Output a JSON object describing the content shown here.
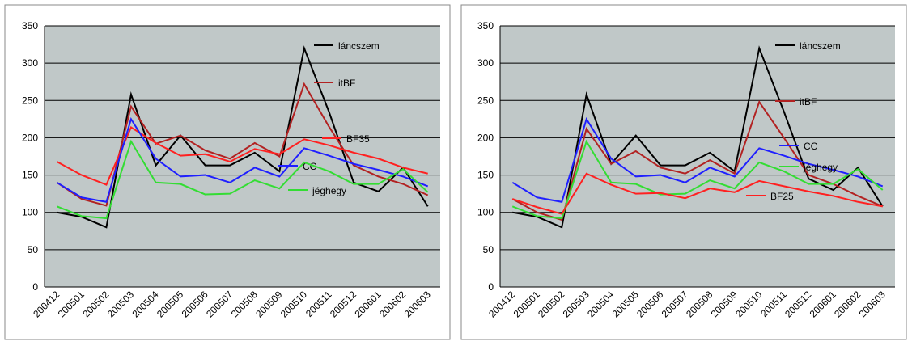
{
  "chart_data": [
    {
      "type": "line",
      "categories": [
        "200412",
        "200501",
        "200502",
        "200503",
        "200504",
        "200505",
        "200506",
        "200507",
        "200508",
        "200509",
        "200510",
        "200511",
        "200512",
        "200601",
        "200602",
        "200603"
      ],
      "ylim": [
        0,
        350
      ],
      "yticks": [
        0,
        50,
        100,
        150,
        200,
        250,
        300,
        350
      ],
      "grid": true,
      "series": [
        {
          "name": "láncszem",
          "color": "#000000",
          "values": [
            100,
            94,
            80,
            258,
            163,
            203,
            163,
            163,
            180,
            155,
            320,
            235,
            140,
            128,
            160,
            108
          ]
        },
        {
          "name": "itBF",
          "color": "#b22222",
          "values": [
            140,
            118,
            109,
            242,
            192,
            203,
            183,
            172,
            193,
            175,
            272,
            215,
            163,
            148,
            138,
            123
          ]
        },
        {
          "name": "BF35",
          "color": "#ff2020",
          "values": [
            168,
            150,
            137,
            214,
            193,
            176,
            178,
            168,
            185,
            178,
            198,
            190,
            180,
            172,
            160,
            152
          ]
        },
        {
          "name": "CC",
          "color": "#1f1fff",
          "values": [
            140,
            120,
            114,
            225,
            172,
            148,
            150,
            140,
            160,
            148,
            186,
            176,
            165,
            157,
            148,
            135
          ]
        },
        {
          "name": "jéghegy",
          "color": "#33dd33",
          "values": [
            108,
            95,
            92,
            195,
            140,
            138,
            124,
            125,
            143,
            132,
            167,
            155,
            138,
            138,
            158,
            127
          ]
        }
      ]
    },
    {
      "type": "line",
      "categories": [
        "200412",
        "200501",
        "200502",
        "200503",
        "200504",
        "200505",
        "200506",
        "200507",
        "200508",
        "200509",
        "200510",
        "200511",
        "200512",
        "200601",
        "200602",
        "200603"
      ],
      "ylim": [
        0,
        350
      ],
      "yticks": [
        0,
        50,
        100,
        150,
        200,
        250,
        300,
        350
      ],
      "grid": true,
      "series": [
        {
          "name": "láncszem",
          "color": "#000000",
          "values": [
            100,
            94,
            80,
            258,
            165,
            203,
            163,
            163,
            180,
            155,
            320,
            235,
            145,
            130,
            160,
            108
          ]
        },
        {
          "name": "itBF",
          "color": "#b22222",
          "values": [
            118,
            100,
            90,
            212,
            165,
            182,
            160,
            152,
            170,
            152,
            248,
            200,
            150,
            138,
            122,
            108
          ]
        },
        {
          "name": "CC",
          "color": "#1f1fff",
          "values": [
            140,
            120,
            114,
            225,
            172,
            148,
            150,
            140,
            160,
            148,
            186,
            176,
            165,
            157,
            148,
            135
          ]
        },
        {
          "name": "jéghegy",
          "color": "#33dd33",
          "values": [
            108,
            95,
            92,
            195,
            140,
            138,
            124,
            125,
            143,
            132,
            167,
            155,
            138,
            138,
            158,
            130
          ]
        },
        {
          "name": "BF25",
          "color": "#ff2020",
          "values": [
            118,
            107,
            98,
            152,
            137,
            125,
            126,
            119,
            132,
            127,
            142,
            135,
            128,
            122,
            114,
            108
          ]
        }
      ]
    }
  ]
}
